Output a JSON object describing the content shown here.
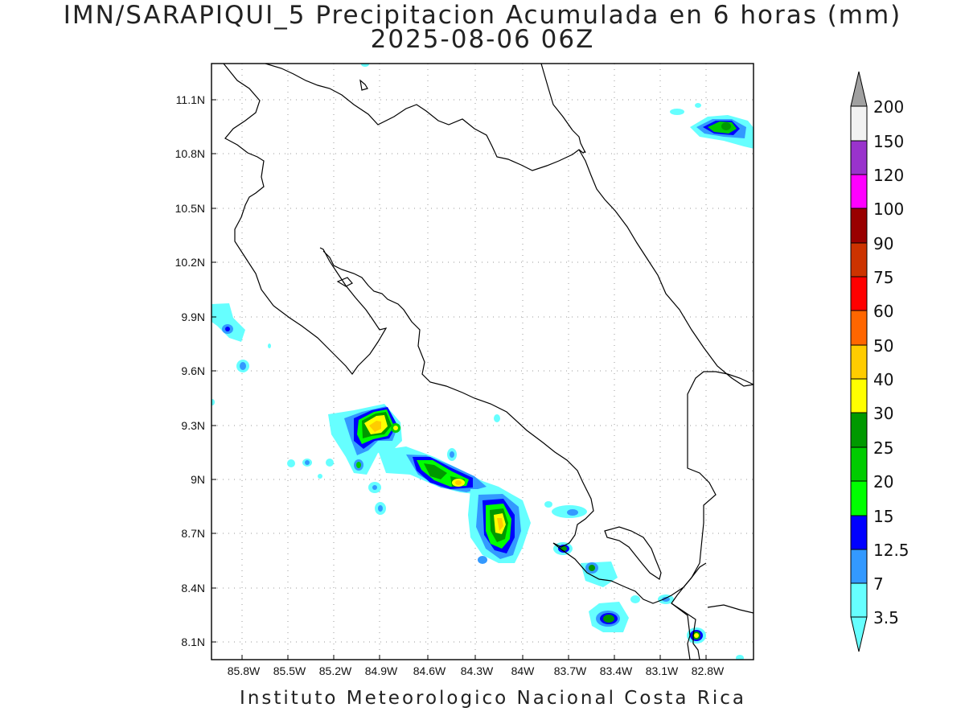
{
  "title_line1": "IMN/SARAPIQUI_5 Precipitacion Acumulada en 6 horas (mm)",
  "title_line2": "2025-08-06 06Z",
  "footer": "Instituto Meteorologico Nacional Costa Rica",
  "lat_ticks": [
    "11.1N",
    "10.8N",
    "10.5N",
    "10.2N",
    "9.9N",
    "9.6N",
    "9.3N",
    "9N",
    "8.7N",
    "8.4N",
    "8.1N"
  ],
  "lon_ticks": [
    "85.8W",
    "85.5W",
    "85.2W",
    "84.9W",
    "84.6W",
    "84.3W",
    "84W",
    "83.7W",
    "83.4W",
    "83.1W",
    "82.8W"
  ],
  "colorbar": {
    "labels": [
      "3.5",
      "7",
      "12.5",
      "15",
      "20",
      "25",
      "30",
      "40",
      "50",
      "60",
      "75",
      "90",
      "100",
      "120",
      "150",
      "200"
    ],
    "colors": [
      "#66ffff",
      "#3399ff",
      "#0000ff",
      "#00ff00",
      "#00cc00",
      "#009900",
      "#ffff00",
      "#ffcc00",
      "#ff6600",
      "#ff0000",
      "#cc3300",
      "#990000",
      "#ff00ff",
      "#9933cc",
      "#f2f2f2",
      "#a0a0a0"
    ]
  },
  "precip_colors": {
    "c3_5": "#66ffff",
    "c7": "#3399ff",
    "c12_5": "#0000ff",
    "c15": "#00ff00",
    "c20": "#00cc00",
    "c25": "#009900",
    "c30": "#ffff00",
    "c40": "#ffcc00"
  }
}
